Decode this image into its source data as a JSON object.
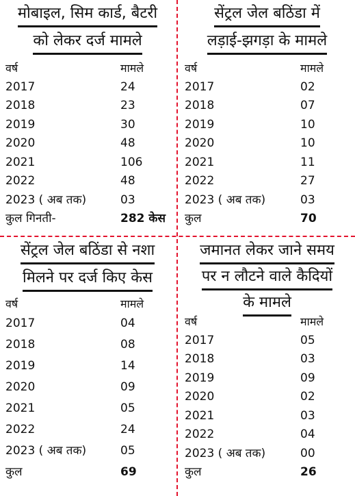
{
  "panels": [
    {
      "title_lines": [
        "मोबाइल, सिम कार्ड, बैटरी",
        "को लेकर दर्ज मामले"
      ],
      "header": {
        "year": "वर्ष",
        "cases": "मामले"
      },
      "rows": [
        {
          "year": "2017",
          "cases": "24"
        },
        {
          "year": "2018",
          "cases": "23"
        },
        {
          "year": "2019",
          "cases": "30"
        },
        {
          "year": "2020",
          "cases": "48"
        },
        {
          "year": "2021",
          "cases": "106"
        },
        {
          "year": "2022",
          "cases": "48"
        },
        {
          "year": "2023 ( अब तक)",
          "cases": "03"
        }
      ],
      "total": {
        "label": "कुल गिनती-",
        "value": "282 केस"
      }
    },
    {
      "title_lines": [
        "सेंट्रल जेल बठिंडा में",
        "लड़ाई-झगड़ा के मामले"
      ],
      "header": {
        "year": "वर्ष",
        "cases": "मामले"
      },
      "rows": [
        {
          "year": "2017",
          "cases": "02"
        },
        {
          "year": "2018",
          "cases": "07"
        },
        {
          "year": "2019",
          "cases": "10"
        },
        {
          "year": "2020",
          "cases": "10"
        },
        {
          "year": "2021",
          "cases": "11"
        },
        {
          "year": "2022",
          "cases": "27"
        },
        {
          "year": "2023 ( अब तक)",
          "cases": "03"
        }
      ],
      "total": {
        "label": "कुल",
        "value": "70"
      }
    },
    {
      "title_lines": [
        "सेंट्रल जेल बठिंडा से नशा",
        "मिलने पर दर्ज किए केस"
      ],
      "header": {
        "year": "वर्ष",
        "cases": "मामले"
      },
      "rows": [
        {
          "year": "2017",
          "cases": "04"
        },
        {
          "year": "2018",
          "cases": "08"
        },
        {
          "year": "2019",
          "cases": "14"
        },
        {
          "year": "2020",
          "cases": "09"
        },
        {
          "year": "2021",
          "cases": "05"
        },
        {
          "year": "2022",
          "cases": "24"
        },
        {
          "year": "2023 ( अब तक)",
          "cases": "05"
        }
      ],
      "total": {
        "label": "कुल",
        "value": "69"
      }
    },
    {
      "title_lines": [
        "जमानत लेकर जाने समय",
        "पर न लौटने वाले कैदियों",
        "के मामले"
      ],
      "header": {
        "year": "वर्ष",
        "cases": "मामले"
      },
      "rows": [
        {
          "year": "2017",
          "cases": "05"
        },
        {
          "year": "2018",
          "cases": "03"
        },
        {
          "year": "2019",
          "cases": "09"
        },
        {
          "year": "2020",
          "cases": "02"
        },
        {
          "year": "2021",
          "cases": "03"
        },
        {
          "year": "2022",
          "cases": "04"
        },
        {
          "year": "2023 ( अब तक)",
          "cases": "00"
        }
      ],
      "total": {
        "label": "कुल",
        "value": "26"
      }
    }
  ],
  "colors": {
    "divider": "#e3122c",
    "text": "#111111",
    "background": "#ffffff"
  }
}
